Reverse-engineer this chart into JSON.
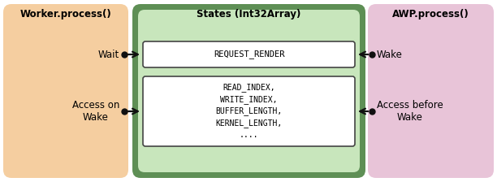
{
  "worker_label": "Worker.process()",
  "states_label": "States (Int32Array)",
  "awp_label": "AWP.process()",
  "worker_bg": "#f5ceA0",
  "states_bg": "#5e8f55",
  "states_inner_bg": "#c8e6bc",
  "awp_bg": "#e8c4d8",
  "box_bg": "#ffffff",
  "box_border": "#444444",
  "arrow_color": "#111111",
  "text_color": "#000000",
  "request_render_text": "REQUEST_RENDER",
  "states_box_line1": "READ_INDEX,",
  "states_box_line2": "WRITE_INDEX,",
  "states_box_line3": "BUFFER_LENGTH,",
  "states_box_line4": "KERNEL_LENGTH,",
  "states_box_line5": "....",
  "wait_label": "Wait",
  "wake_label": "Wake",
  "access_on_wake_label": "Access on\nWake",
  "access_before_wake_label": "Access before\nWake",
  "fig_w": 6.12,
  "fig_h": 2.24,
  "dpi": 100
}
